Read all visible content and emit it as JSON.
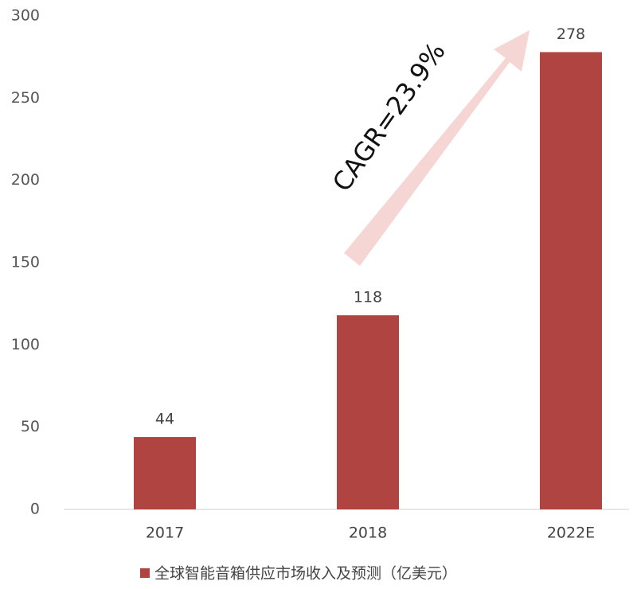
{
  "chart_data": {
    "type": "bar",
    "categories": [
      "2017",
      "2018",
      "2022E"
    ],
    "series": [
      {
        "name": "全球智能音箱供应市场收入及预测（亿美元）",
        "color": "#b04440",
        "values": [
          44,
          118,
          278
        ]
      }
    ],
    "ylim": [
      0,
      300
    ],
    "yticks": [
      0,
      50,
      100,
      150,
      200,
      250,
      300
    ],
    "annotation": "CAGR=23.9%",
    "legend": "bottom"
  }
}
